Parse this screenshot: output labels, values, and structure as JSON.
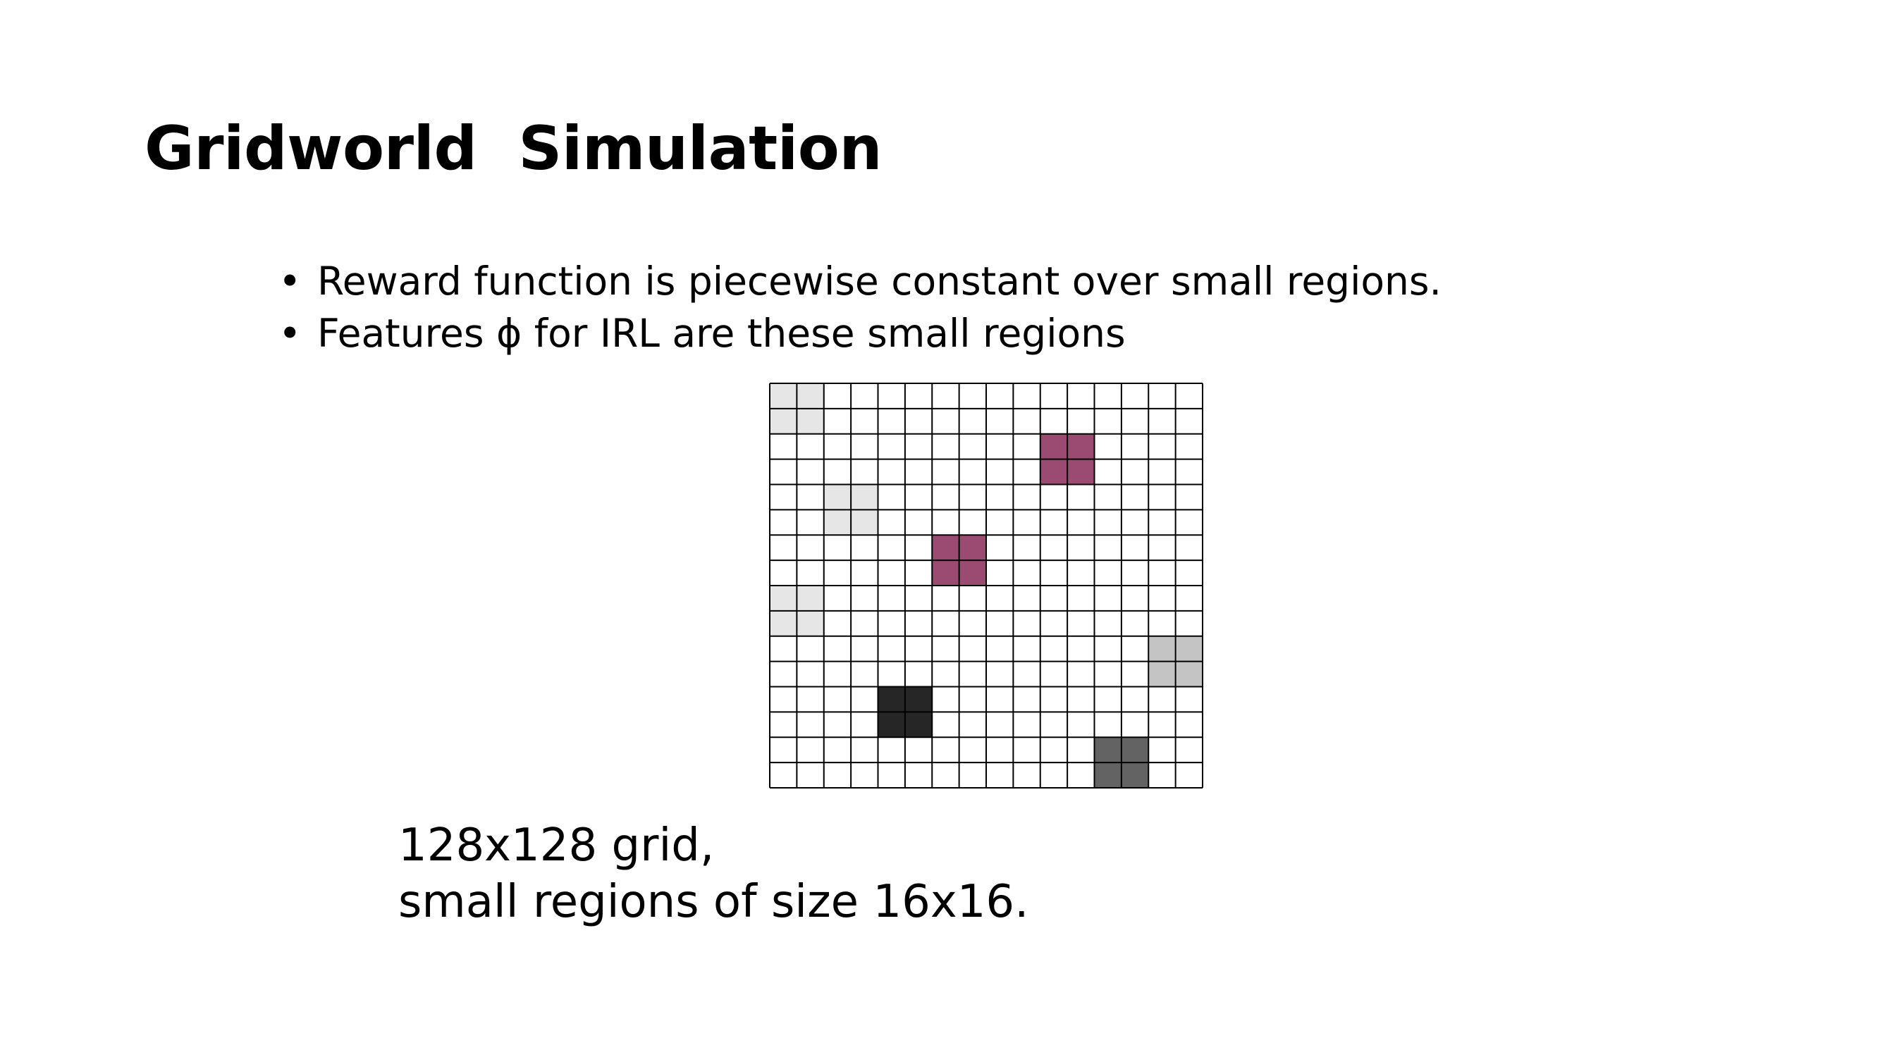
{
  "slide": {
    "title": "Gridworld  Simulation",
    "bullets": [
      "Reward function is piecewise constant over small regions.",
      "Features ϕ for IRL are these small regions"
    ],
    "bullet_marker": "•",
    "caption_lines": [
      "128x128 grid,",
      "small regions of size 16x16."
    ]
  },
  "grid_figure": {
    "columns": 16,
    "rows": 16,
    "line_color": "#000000",
    "empty_color": "#ffffff",
    "regions": [
      {
        "col": 0,
        "row": 0,
        "color": "#e6e6e6"
      },
      {
        "col": 10,
        "row": 2,
        "color": "#9b4a72"
      },
      {
        "col": 2,
        "row": 4,
        "color": "#e6e6e6"
      },
      {
        "col": 6,
        "row": 6,
        "color": "#9b4a72"
      },
      {
        "col": 0,
        "row": 8,
        "color": "#e6e6e6"
      },
      {
        "col": 14,
        "row": 10,
        "color": "#c4c4c4"
      },
      {
        "col": 4,
        "row": 12,
        "color": "#262626"
      },
      {
        "col": 12,
        "row": 14,
        "color": "#636363"
      }
    ]
  }
}
